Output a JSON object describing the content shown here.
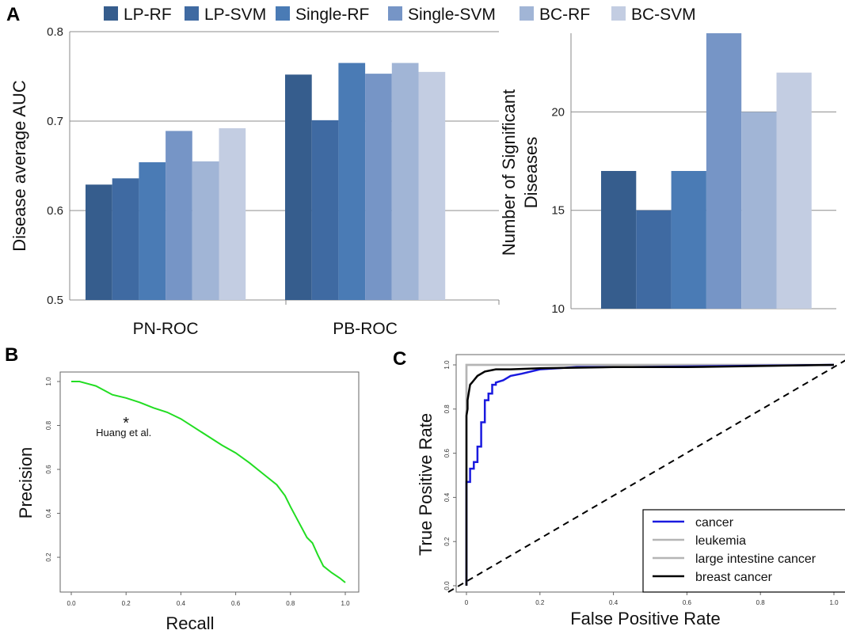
{
  "panels": {
    "a": "A",
    "b": "B",
    "c": "C"
  },
  "legend_a": {
    "items": [
      {
        "label": "LP-RF",
        "color": "#365d8d"
      },
      {
        "label": "LP-SVM",
        "color": "#3f6aa2"
      },
      {
        "label": "Single-RF",
        "color": "#4a7bb5"
      },
      {
        "label": "Single-SVM",
        "color": "#7695c6"
      },
      {
        "label": "BC-RF",
        "color": "#a1b5d6"
      },
      {
        "label": "BC-SVM",
        "color": "#c3cde2"
      }
    ]
  },
  "chart_data": [
    {
      "id": "auc",
      "type": "bar",
      "ylabel": "Disease average AUC",
      "ylim": [
        0.5,
        0.8
      ],
      "yticks": [
        "0.5",
        "0.6",
        "0.7",
        "0.8"
      ],
      "categories": [
        "PN-ROC",
        "PB-ROC"
      ],
      "series": [
        {
          "name": "LP-RF",
          "values": [
            0.629,
            0.752
          ]
        },
        {
          "name": "LP-SVM",
          "values": [
            0.636,
            0.701
          ]
        },
        {
          "name": "Single-RF",
          "values": [
            0.654,
            0.765
          ]
        },
        {
          "name": "Single-SVM",
          "values": [
            0.689,
            0.753
          ]
        },
        {
          "name": "BC-RF",
          "values": [
            0.655,
            0.765
          ]
        },
        {
          "name": "BC-SVM",
          "values": [
            0.692,
            0.755
          ]
        }
      ],
      "grid": true
    },
    {
      "id": "count",
      "type": "bar",
      "ylabel": [
        "Number of Significant",
        "Diseases"
      ],
      "ylim": [
        10,
        24
      ],
      "yticks": [
        "10",
        "15",
        "20"
      ],
      "series": [
        {
          "name": "LP-RF",
          "values": [
            17
          ]
        },
        {
          "name": "LP-SVM",
          "values": [
            15
          ]
        },
        {
          "name": "Single-RF",
          "values": [
            17
          ]
        },
        {
          "name": "Single-SVM",
          "values": [
            24
          ]
        },
        {
          "name": "BC-RF",
          "values": [
            20
          ]
        },
        {
          "name": "BC-SVM",
          "values": [
            22
          ]
        }
      ],
      "grid": true
    },
    {
      "id": "pr",
      "type": "line",
      "xlabel": "Recall",
      "ylabel": "Precision",
      "xlim": [
        0,
        1
      ],
      "ylim": [
        0.08,
        1.02
      ],
      "xticks": [
        "0.0",
        "0.2",
        "0.4",
        "0.6",
        "0.8",
        "1.0"
      ],
      "yticks": [
        "0.2",
        "0.4",
        "0.6",
        "0.8",
        "1.0"
      ],
      "series": [
        {
          "color": "#22dd22",
          "x": [
            0.0,
            0.03,
            0.06,
            0.09,
            0.12,
            0.15,
            0.2,
            0.25,
            0.3,
            0.35,
            0.4,
            0.45,
            0.5,
            0.55,
            0.6,
            0.65,
            0.7,
            0.75,
            0.78,
            0.8,
            0.83,
            0.86,
            0.88,
            0.9,
            0.92,
            0.95,
            0.98,
            1.0
          ],
          "y": [
            1.0,
            1.0,
            0.99,
            0.98,
            0.96,
            0.94,
            0.925,
            0.905,
            0.88,
            0.86,
            0.83,
            0.79,
            0.75,
            0.71,
            0.675,
            0.63,
            0.58,
            0.53,
            0.48,
            0.43,
            0.36,
            0.29,
            0.265,
            0.21,
            0.16,
            0.13,
            0.105,
            0.085
          ]
        }
      ],
      "annotations": [
        {
          "label": "Huang et al.",
          "x": 0.2,
          "y": 0.82,
          "marker": "*"
        }
      ]
    },
    {
      "id": "roc",
      "type": "line",
      "xlabel": "False Positive Rate",
      "ylabel": "True Positive Rate",
      "xlim": [
        0,
        1
      ],
      "ylim": [
        0,
        1
      ],
      "xticks": [
        "0",
        "0.2",
        "0.4",
        "0.6",
        "0.8",
        "1.0"
      ],
      "yticks": [
        "0.0",
        "0.2",
        "0.4",
        "0.6",
        "0.8",
        "1.0"
      ],
      "series": [
        {
          "name": "cancer",
          "color": "#1a1adf",
          "x": [
            0.0,
            0.0,
            0.01,
            0.01,
            0.02,
            0.02,
            0.03,
            0.03,
            0.04,
            0.04,
            0.05,
            0.05,
            0.06,
            0.06,
            0.07,
            0.07,
            0.08,
            0.08,
            0.1,
            0.12,
            0.15,
            0.2,
            0.3,
            0.45,
            1.0
          ],
          "y": [
            0.0,
            0.47,
            0.47,
            0.53,
            0.53,
            0.56,
            0.56,
            0.63,
            0.63,
            0.74,
            0.74,
            0.84,
            0.84,
            0.87,
            0.87,
            0.91,
            0.91,
            0.92,
            0.93,
            0.95,
            0.96,
            0.98,
            0.99,
            0.99,
            1.0
          ]
        },
        {
          "name": "leukemia",
          "color": "#b5b5b5",
          "x": [
            0.0,
            0.0,
            1.0
          ],
          "y": [
            0.0,
            1.0,
            1.0
          ]
        },
        {
          "name": "large intestine cancer",
          "color": "#b5b5b5",
          "x": [
            0.0,
            0.0,
            1.0
          ],
          "y": [
            0.0,
            1.0,
            1.0
          ]
        },
        {
          "name": "breast cancer",
          "color": "#000000",
          "x": [
            0.0,
            0.0,
            0.003,
            0.003,
            0.007,
            0.01,
            0.015,
            0.02,
            0.03,
            0.05,
            0.08,
            0.12,
            0.2,
            0.4,
            0.6,
            0.8,
            1.0
          ],
          "y": [
            0.0,
            0.77,
            0.8,
            0.84,
            0.88,
            0.91,
            0.92,
            0.93,
            0.95,
            0.97,
            0.98,
            0.98,
            0.985,
            0.99,
            0.99,
            0.995,
            1.0
          ]
        }
      ],
      "diagonal": true
    }
  ]
}
